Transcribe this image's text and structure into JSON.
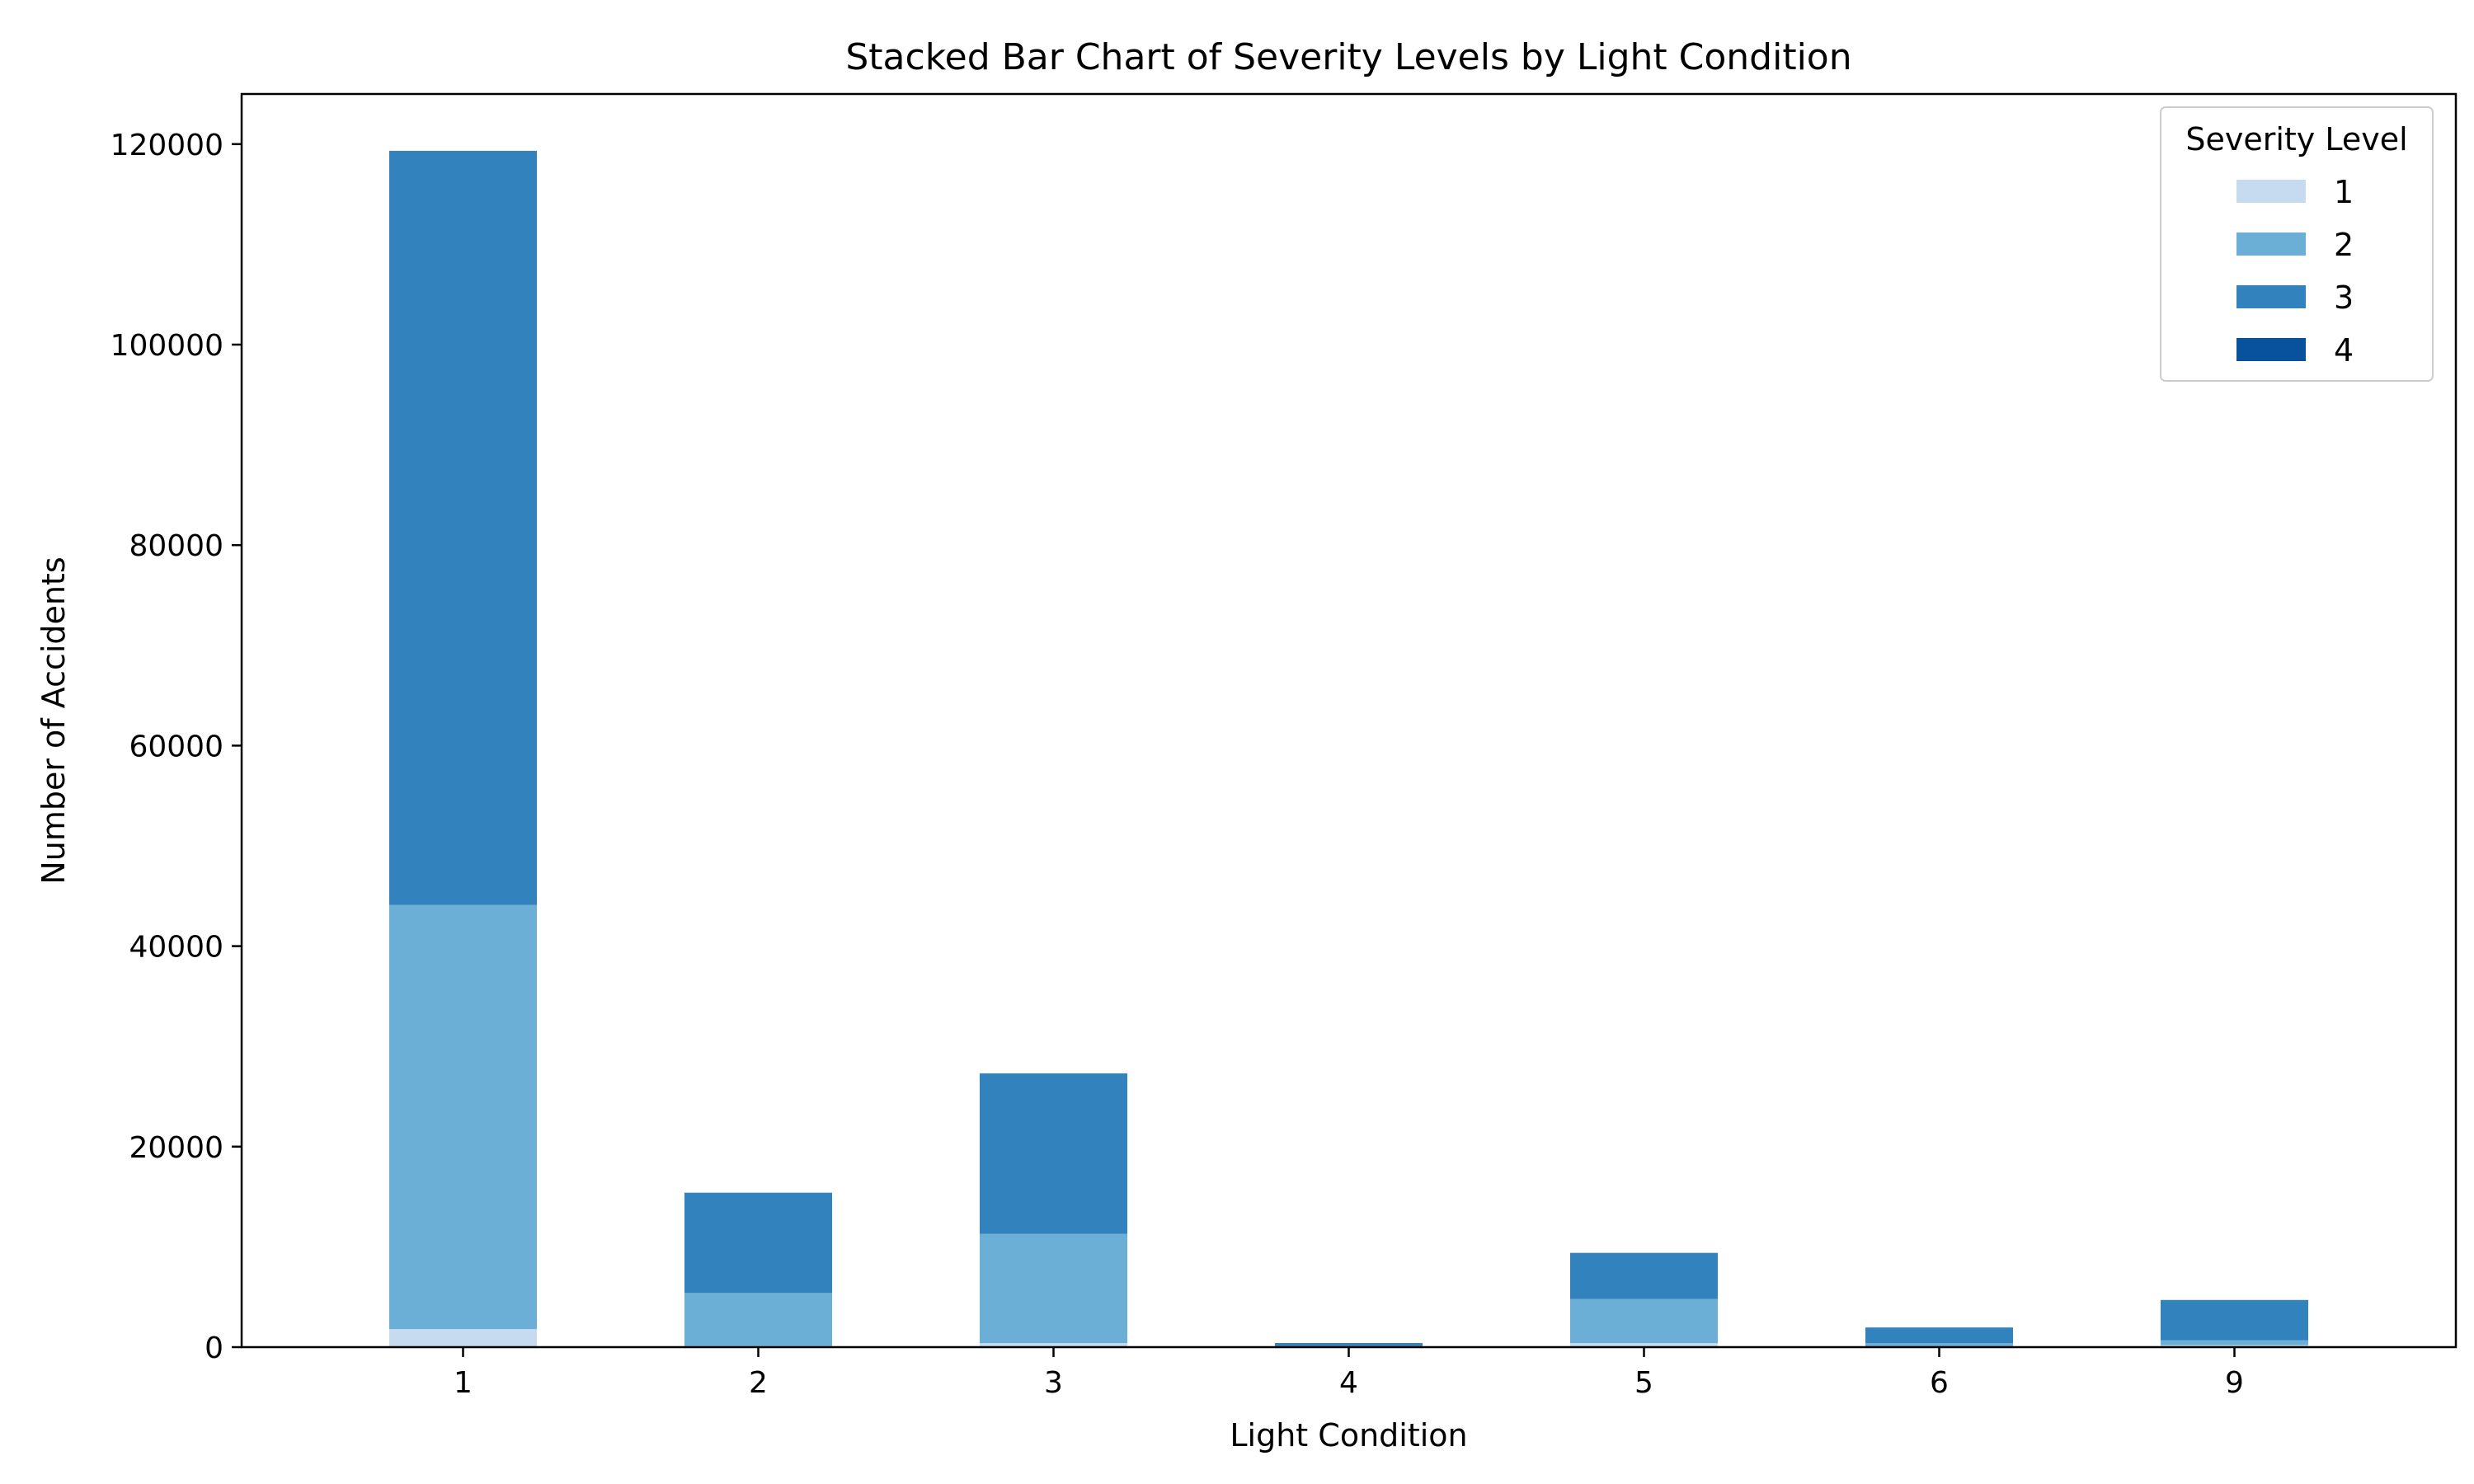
{
  "chart_data": {
    "type": "bar",
    "stacked": true,
    "title": "Stacked Bar Chart of Severity Levels by Light Condition",
    "xlabel": "Light Condition",
    "ylabel": "Number of Accidents",
    "categories": [
      "1",
      "2",
      "3",
      "4",
      "5",
      "6",
      "9"
    ],
    "ylim": [
      0,
      125000
    ],
    "yticks": [
      0,
      20000,
      40000,
      60000,
      80000,
      100000,
      120000
    ],
    "ytick_labels": [
      "0",
      "20000",
      "40000",
      "60000",
      "80000",
      "100000",
      "120000"
    ],
    "grid": false,
    "legend": {
      "title": "Severity Level",
      "position": "top-right"
    },
    "series": [
      {
        "name": "1",
        "color": "#c6dbef",
        "values": [
          1800,
          100,
          400,
          10,
          400,
          60,
          200
        ]
      },
      {
        "name": "2",
        "color": "#6baed6",
        "values": [
          42300,
          5300,
          10900,
          100,
          4400,
          350,
          500
        ]
      },
      {
        "name": "3",
        "color": "#3182bd",
        "values": [
          75200,
          10000,
          16000,
          300,
          4600,
          1550,
          4000
        ]
      },
      {
        "name": "4",
        "color": "#08519c",
        "values": [
          30,
          5,
          10,
          1,
          5,
          2,
          5
        ]
      }
    ]
  }
}
